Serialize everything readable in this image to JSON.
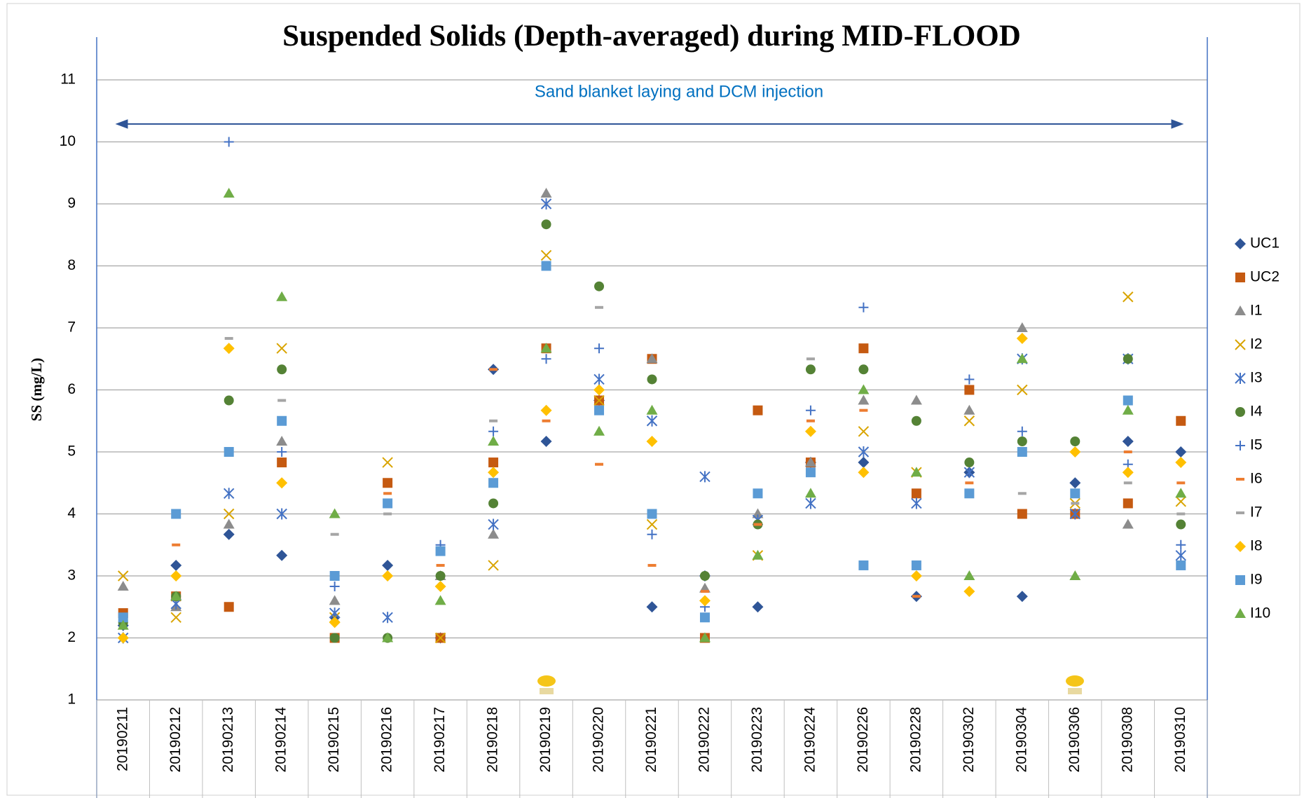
{
  "chart_data": {
    "type": "scatter",
    "title": "Suspended Solids (Depth-averaged) during MID-FLOOD",
    "y_label": "SS (mg/L)",
    "annotation": "Sand blanket laying and DCM injection",
    "categories": [
      "20190211",
      "20190212",
      "20190213",
      "20190214",
      "20190215",
      "20190216",
      "20190217",
      "20190218",
      "20190219",
      "20190220",
      "20190221",
      "20190222",
      "20190223",
      "20190224",
      "20190226",
      "20190228",
      "20190302",
      "20190304",
      "20190306",
      "20190308",
      "20190310"
    ],
    "ylim": [
      1,
      11
    ],
    "yticks": [
      1,
      2,
      3,
      4,
      5,
      6,
      7,
      8,
      9,
      10,
      11
    ],
    "grid": true,
    "legend": "right",
    "series": [
      {
        "name": "UC1",
        "color": "#2f5597",
        "marker": "diamond",
        "values": [
          2.2,
          3.17,
          3.67,
          3.33,
          2.33,
          3.17,
          2.0,
          6.33,
          5.17,
          5.83,
          2.5,
          3.0,
          2.5,
          4.83,
          4.83,
          2.67,
          4.67,
          2.67,
          4.5,
          5.17,
          5.0
        ]
      },
      {
        "name": "UC2",
        "color": "#c55a11",
        "marker": "square",
        "values": [
          2.4,
          2.67,
          2.5,
          4.83,
          2.0,
          4.5,
          2.0,
          4.83,
          6.67,
          5.83,
          6.5,
          2.0,
          5.67,
          4.83,
          6.67,
          4.33,
          6.0,
          4.0,
          4.0,
          4.17,
          5.5
        ]
      },
      {
        "name": "I1",
        "color": "#8c8c8c",
        "marker": "triangle",
        "values": [
          2.83,
          2.5,
          3.83,
          5.17,
          2.6,
          null,
          3.0,
          3.67,
          9.17,
          null,
          6.5,
          2.8,
          4.0,
          4.83,
          5.83,
          5.83,
          5.67,
          7.0,
          null,
          3.83,
          null
        ]
      },
      {
        "name": "I2",
        "color": "#d9a400",
        "marker": "x",
        "values": [
          3.0,
          2.33,
          4.0,
          6.67,
          2.33,
          4.83,
          2.0,
          3.17,
          8.17,
          5.83,
          3.83,
          null,
          3.33,
          null,
          5.33,
          4.67,
          5.5,
          6.0,
          4.17,
          7.5,
          4.2
        ]
      },
      {
        "name": "I3",
        "color": "#4472c4",
        "marker": "asterisk",
        "values": [
          2.0,
          2.55,
          4.33,
          4.0,
          2.4,
          2.33,
          null,
          3.83,
          9.0,
          6.17,
          5.5,
          4.6,
          3.9,
          4.17,
          5.0,
          4.17,
          4.67,
          6.5,
          4.0,
          6.5,
          3.33
        ]
      },
      {
        "name": "I4",
        "color": "#548235",
        "marker": "circle",
        "values": [
          2.25,
          2.67,
          5.83,
          6.33,
          2.0,
          2.0,
          3.0,
          4.17,
          8.67,
          7.67,
          6.17,
          3.0,
          3.83,
          6.33,
          6.33,
          5.5,
          4.83,
          5.17,
          5.17,
          6.5,
          3.83
        ]
      },
      {
        "name": "I5",
        "color": "#4472c4",
        "marker": "plus",
        "values": [
          2.0,
          null,
          10.0,
          5.0,
          2.83,
          null,
          3.5,
          5.33,
          6.5,
          6.67,
          3.67,
          2.5,
          null,
          5.67,
          7.33,
          null,
          6.17,
          5.33,
          null,
          4.8,
          3.5
        ]
      },
      {
        "name": "I6",
        "color": "#ed7d31",
        "marker": "dash",
        "values": [
          null,
          3.5,
          null,
          null,
          null,
          4.33,
          3.17,
          6.33,
          5.5,
          4.8,
          3.17,
          2.75,
          3.83,
          5.5,
          5.67,
          2.67,
          4.5,
          null,
          null,
          5.0,
          4.5
        ]
      },
      {
        "name": "I7",
        "color": "#a5a5a5",
        "marker": "dash",
        "values": [
          null,
          null,
          6.83,
          5.83,
          3.67,
          4.0,
          null,
          5.5,
          null,
          7.33,
          null,
          null,
          null,
          6.5,
          null,
          null,
          null,
          4.33,
          4.17,
          4.5,
          4.0
        ]
      },
      {
        "name": "I8",
        "color": "#ffc000",
        "marker": "diamond",
        "values": [
          2.0,
          3.0,
          6.67,
          4.5,
          2.25,
          3.0,
          2.83,
          4.67,
          5.67,
          6.0,
          5.17,
          2.6,
          null,
          5.33,
          4.67,
          3.0,
          2.75,
          6.83,
          5.0,
          4.67,
          4.83
        ]
      },
      {
        "name": "I9",
        "color": "#5b9bd5",
        "marker": "square",
        "values": [
          2.33,
          4.0,
          5.0,
          5.5,
          3.0,
          4.17,
          3.4,
          4.5,
          8.0,
          5.67,
          4.0,
          2.33,
          4.33,
          4.67,
          3.17,
          3.17,
          4.33,
          5.0,
          4.33,
          5.83,
          3.17
        ]
      },
      {
        "name": "I10",
        "color": "#70ad47",
        "marker": "triangle",
        "values": [
          2.2,
          2.67,
          9.17,
          7.5,
          4.0,
          2.0,
          2.6,
          5.17,
          6.67,
          5.33,
          5.67,
          2.0,
          3.33,
          4.33,
          6.0,
          4.67,
          3.0,
          6.5,
          3.0,
          5.67,
          4.33
        ]
      }
    ]
  }
}
